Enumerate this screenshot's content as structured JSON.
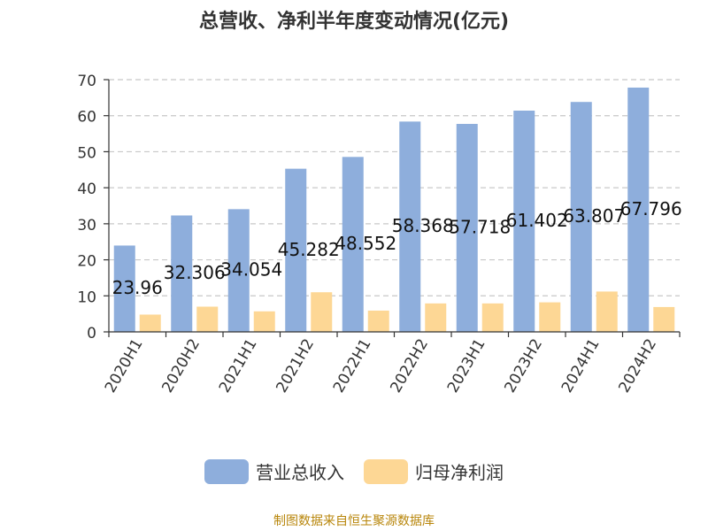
{
  "title": "总营收、净利半年度变动情况(亿元)",
  "source": "制图数据来自恒生聚源数据库",
  "source_color": "#b8860b",
  "chart_data": {
    "type": "bar",
    "categories": [
      "2020H1",
      "2020H2",
      "2021H1",
      "2021H2",
      "2022H1",
      "2022H2",
      "2023H1",
      "2023H2",
      "2024H1",
      "2024H2"
    ],
    "series": [
      {
        "name": "营业总收入",
        "color": "#8eaedc",
        "values": [
          23.96,
          32.306,
          34.054,
          45.282,
          48.552,
          58.368,
          57.718,
          61.402,
          63.807,
          67.796
        ],
        "labels": [
          "23.96",
          "32.306",
          "34.054",
          "45.282",
          "48.552",
          "58.368",
          "57.718",
          "61.402",
          "63.807",
          "67.796"
        ]
      },
      {
        "name": "归母净利润",
        "color": "#fdd795",
        "values": [
          4.8,
          7.0,
          5.7,
          11.0,
          5.9,
          7.9,
          7.9,
          8.2,
          11.2,
          6.9
        ]
      }
    ],
    "ylim": [
      0,
      70
    ],
    "yticks": [
      0,
      10,
      20,
      30,
      40,
      50,
      60,
      70
    ],
    "grid": true,
    "legend": "bottom"
  }
}
